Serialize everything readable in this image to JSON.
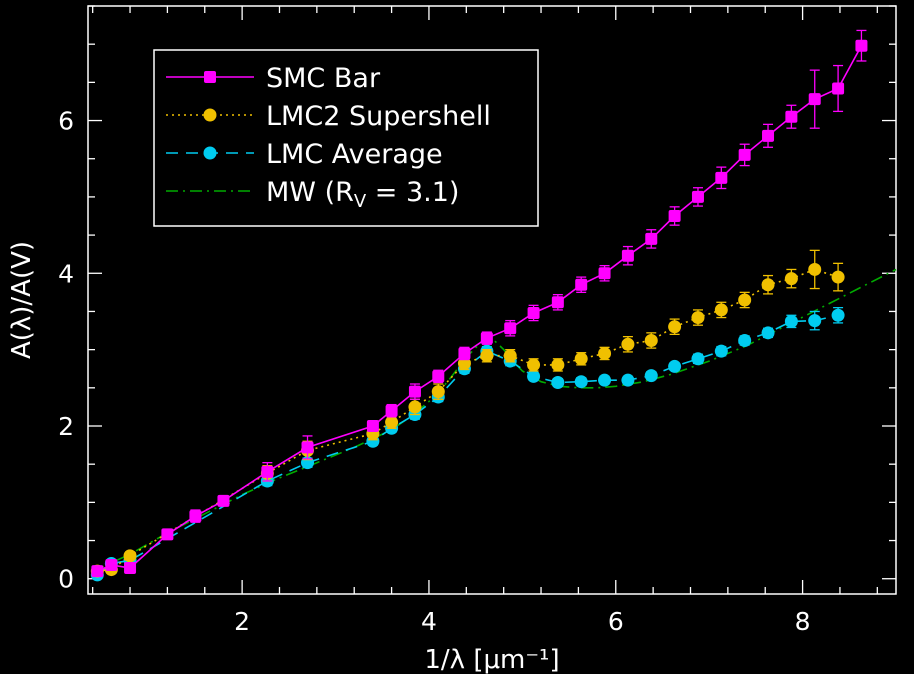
{
  "chart_data": {
    "type": "line",
    "title": "",
    "xlabel": "1/λ [μm⁻¹]",
    "ylabel": "A(λ)/A(V)",
    "xlim": [
      0.35,
      9.0
    ],
    "ylim": [
      -0.2,
      7.5
    ],
    "xticks": [
      2,
      4,
      6,
      8
    ],
    "yticks": [
      0,
      2,
      4,
      6
    ],
    "legend_position": "top-left",
    "background": "#000000",
    "axis_color": "#ffffff",
    "series": [
      {
        "name": "SMC Bar",
        "color": "#ff00ff",
        "line_style": "solid",
        "marker": "square",
        "x": [
          0.45,
          0.6,
          0.8,
          1.2,
          1.5,
          1.8,
          2.27,
          2.7,
          3.4,
          3.6,
          3.85,
          4.1,
          4.38,
          4.62,
          4.87,
          5.12,
          5.38,
          5.63,
          5.88,
          6.13,
          6.38,
          6.63,
          6.88,
          7.13,
          7.38,
          7.63,
          7.88,
          8.13,
          8.38,
          8.63
        ],
        "y": [
          0.1,
          0.18,
          0.14,
          0.58,
          0.82,
          1.02,
          1.4,
          1.72,
          2.0,
          2.2,
          2.45,
          2.65,
          2.95,
          3.15,
          3.28,
          3.48,
          3.62,
          3.85,
          4.0,
          4.23,
          4.45,
          4.75,
          5.0,
          5.25,
          5.55,
          5.8,
          6.05,
          6.28,
          6.42,
          6.98
        ],
        "y_err": [
          0.05,
          0.05,
          0.05,
          0.05,
          0.08,
          0.05,
          0.12,
          0.15,
          0.06,
          0.08,
          0.1,
          0.08,
          0.08,
          0.08,
          0.1,
          0.1,
          0.1,
          0.1,
          0.1,
          0.12,
          0.12,
          0.12,
          0.12,
          0.14,
          0.14,
          0.15,
          0.15,
          0.38,
          0.3,
          0.2
        ]
      },
      {
        "name": "LMC2 Supershell",
        "color": "#f0c000",
        "line_style": "dotted",
        "marker": "circle",
        "x": [
          0.45,
          0.6,
          0.8,
          2.27,
          2.7,
          3.4,
          3.6,
          3.85,
          4.1,
          4.38,
          4.62,
          4.87,
          5.12,
          5.38,
          5.63,
          5.88,
          6.13,
          6.38,
          6.63,
          6.88,
          7.13,
          7.38,
          7.63,
          7.88,
          8.13,
          8.38
        ],
        "y": [
          0.1,
          0.12,
          0.3,
          1.38,
          1.68,
          1.9,
          2.05,
          2.25,
          2.45,
          2.82,
          2.92,
          2.92,
          2.8,
          2.8,
          2.88,
          2.95,
          3.07,
          3.12,
          3.3,
          3.42,
          3.52,
          3.65,
          3.85,
          3.93,
          4.05,
          3.95
        ],
        "y_err": [
          0.05,
          0.05,
          0.05,
          0.1,
          0.12,
          0.08,
          0.08,
          0.1,
          0.1,
          0.08,
          0.08,
          0.08,
          0.08,
          0.08,
          0.08,
          0.08,
          0.1,
          0.1,
          0.1,
          0.1,
          0.1,
          0.1,
          0.12,
          0.12,
          0.25,
          0.18
        ]
      },
      {
        "name": "LMC Average",
        "color": "#00ccf0",
        "line_style": "dashed",
        "marker": "circle",
        "x": [
          0.45,
          0.6,
          0.8,
          2.27,
          2.7,
          3.4,
          3.6,
          3.85,
          4.1,
          4.38,
          4.62,
          4.87,
          5.12,
          5.38,
          5.63,
          5.88,
          6.13,
          6.38,
          6.63,
          6.88,
          7.13,
          7.38,
          7.63,
          7.88,
          8.13,
          8.38
        ],
        "y": [
          0.05,
          0.2,
          0.24,
          1.28,
          1.52,
          1.8,
          1.97,
          2.15,
          2.38,
          2.75,
          2.98,
          2.85,
          2.65,
          2.57,
          2.58,
          2.6,
          2.6,
          2.66,
          2.78,
          2.88,
          2.98,
          3.12,
          3.22,
          3.37,
          3.38,
          3.45
        ],
        "y_err": [
          0.04,
          0.04,
          0.04,
          0.06,
          0.06,
          0.05,
          0.05,
          0.06,
          0.06,
          0.06,
          0.06,
          0.06,
          0.05,
          0.05,
          0.05,
          0.05,
          0.05,
          0.05,
          0.05,
          0.06,
          0.06,
          0.06,
          0.06,
          0.08,
          0.12,
          0.1
        ]
      },
      {
        "name": "MW (R",
        "name_subscript": "V",
        "name_suffix": " = 3.1)",
        "color": "#00aa00",
        "line_style": "dashdot",
        "marker": "none",
        "x": [
          0.4,
          0.8,
          1.2,
          1.6,
          2.0,
          2.4,
          2.8,
          3.2,
          3.6,
          3.8,
          4.0,
          4.2,
          4.4,
          4.6,
          4.7,
          4.8,
          4.9,
          5.0,
          5.2,
          5.4,
          5.6,
          5.8,
          6.0,
          6.3,
          6.6,
          7.0,
          7.4,
          7.8,
          8.2,
          8.6,
          9.0
        ],
        "y": [
          0.1,
          0.32,
          0.6,
          0.85,
          1.1,
          1.32,
          1.52,
          1.72,
          1.95,
          2.12,
          2.32,
          2.58,
          2.9,
          3.15,
          3.12,
          3.0,
          2.85,
          2.72,
          2.58,
          2.52,
          2.5,
          2.5,
          2.52,
          2.58,
          2.68,
          2.85,
          3.05,
          3.3,
          3.55,
          3.8,
          4.05
        ]
      }
    ]
  }
}
